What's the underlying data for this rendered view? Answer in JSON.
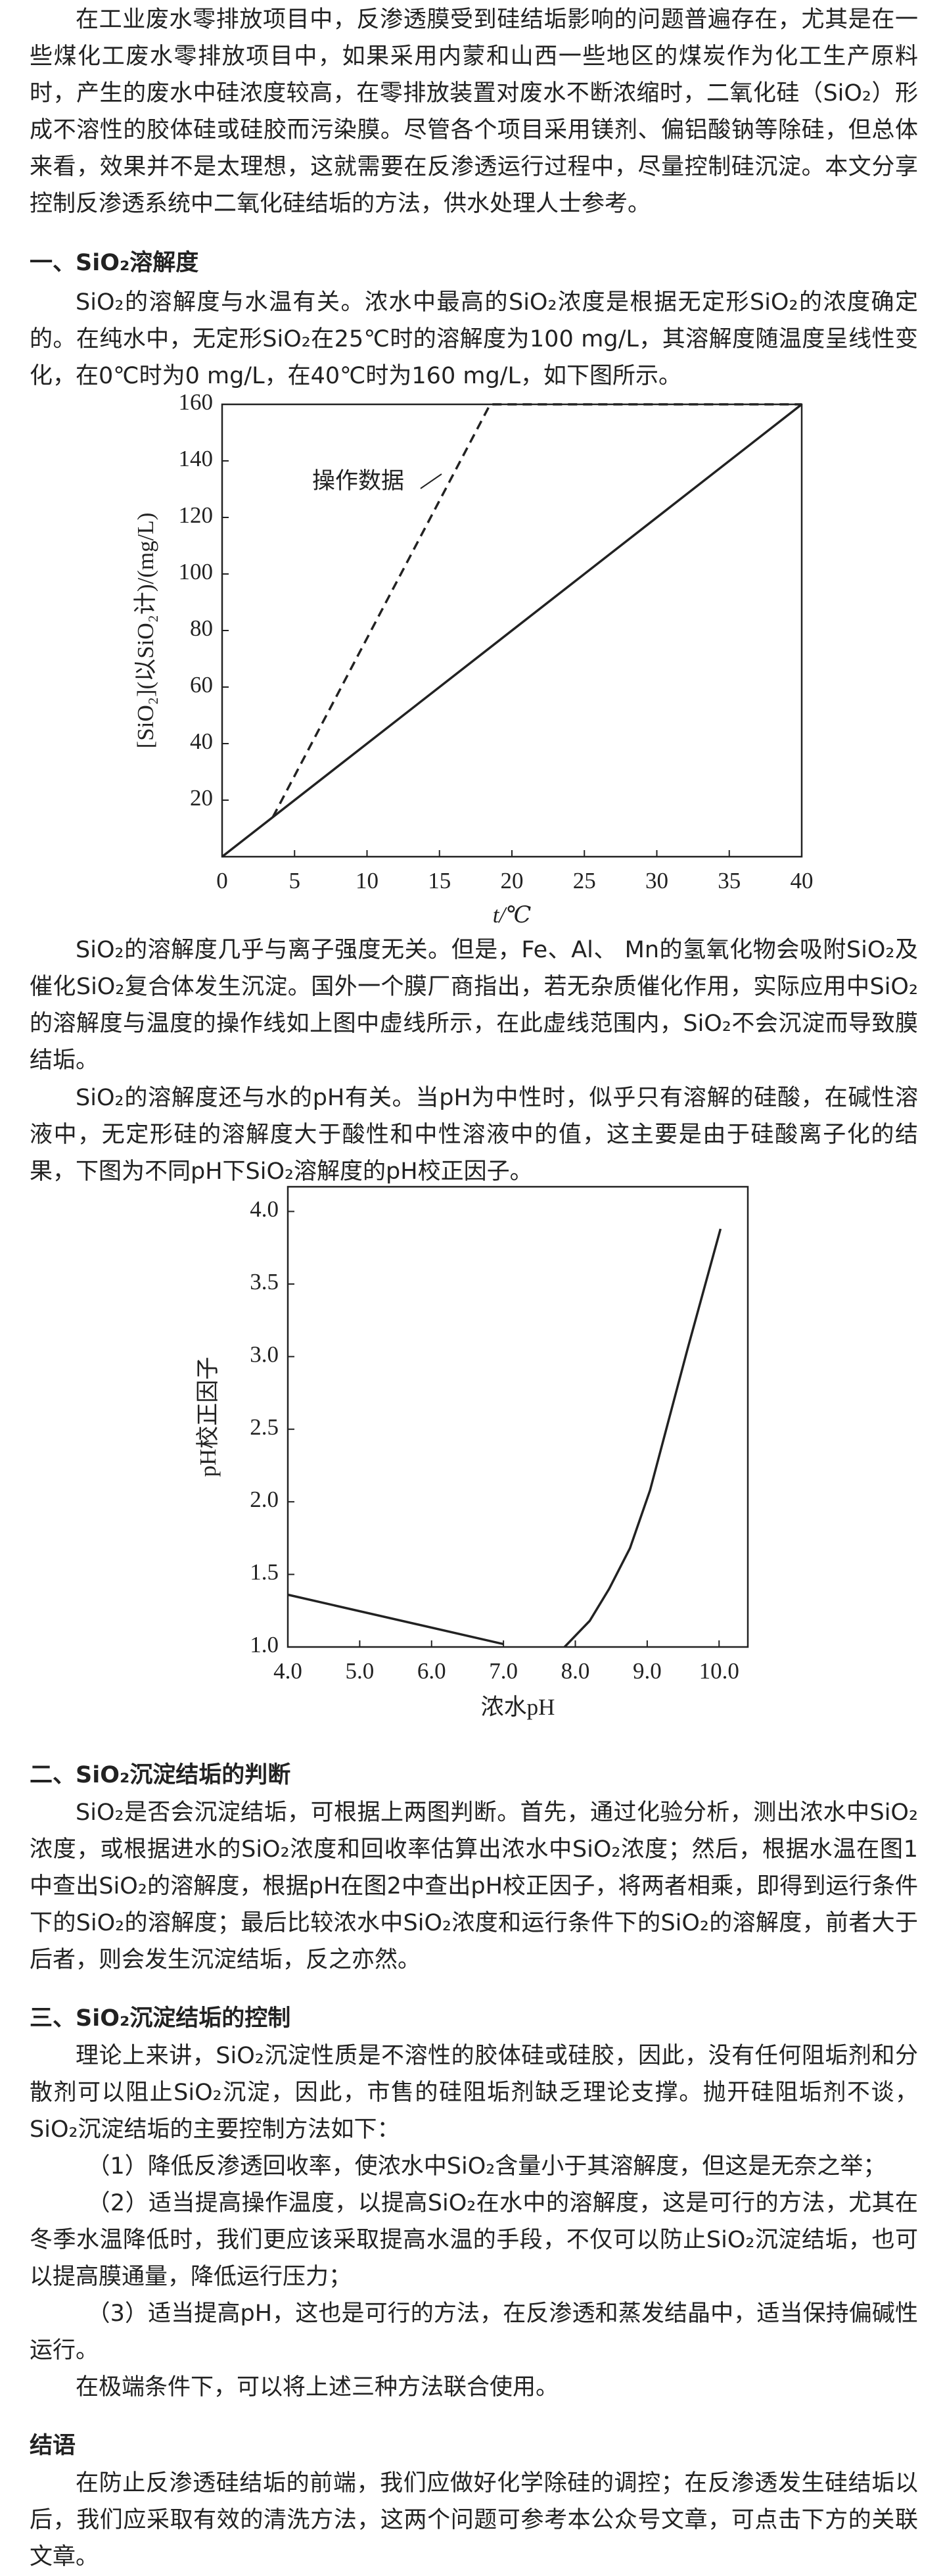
{
  "intro": "在工业废水零排放项目中，反渗透膜受到硅结垢影响的问题普遍存在，尤其是在一些煤化工废水零排放项目中，如果采用内蒙和山西一些地区的煤炭作为化工生产原料时，产生的废水中硅浓度较高，在零排放装置对废水不断浓缩时，二氧化硅（SiO₂）形成不溶性的胶体硅或硅胶而污染膜。尽管各个项目采用镁剂、偏铝酸钠等除硅，但总体来看，效果并不是太理想，这就需要在反渗透运行过程中，尽量控制硅沉淀。本文分享控制反渗透系统中二氧化硅结垢的方法，供水处理人士参考。",
  "sections": [
    {
      "heading": "一、SiO₂溶解度",
      "paragraphs": [
        "SiO₂的溶解度与水温有关。浓水中最高的SiO₂浓度是根据无定形SiO₂的浓度确定的。在纯水中，无定形SiO₂在25℃时的溶解度为100 mg/L，其溶解度随温度呈线性变化，在0℃时为0 mg/L，在40℃时为160 mg/L，如下图所示。",
        "SiO₂的溶解度几乎与离子强度无关。但是，Fe、Al、 Mn的氢氧化物会吸附SiO₂及催化SiO₂复合体发生沉淀。国外一个膜厂商指出，若无杂质催化作用，实际应用中SiO₂的溶解度与温度的操作线如上图中虚线所示，在此虚线范围内，SiO₂不会沉淀而导致膜结垢。",
        "SiO₂的溶解度还与水的pH有关。当pH为中性时，似乎只有溶解的硅酸，在碱性溶液中，无定形硅的溶解度大于酸性和中性溶液中的值，这主要是由于硅酸离子化的结果，下图为不同pH下SiO₂溶解度的pH校正因子。"
      ]
    },
    {
      "heading": "二、SiO₂沉淀结垢的判断",
      "paragraphs": [
        "SiO₂是否会沉淀结垢，可根据上两图判断。首先，通过化验分析，测出浓水中SiO₂浓度，或根据进水的SiO₂浓度和回收率估算出浓水中SiO₂浓度；然后，根据水温在图1中查出SiO₂的溶解度，根据pH在图2中查出pH校正因子，将两者相乘，即得到运行条件下的SiO₂的溶解度；最后比较浓水中SiO₂浓度和运行条件下的SiO₂的溶解度，前者大于后者，则会发生沉淀结垢，反之亦然。"
      ]
    },
    {
      "heading": "三、SiO₂沉淀结垢的控制",
      "paragraphs": [
        "理论上来讲，SiO₂沉淀性质是不溶性的胶体硅或硅胶，因此，没有任何阻垢剂和分散剂可以阻止SiO₂沉淀，因此，市售的硅阻垢剂缺乏理论支撑。抛开硅阻垢剂不谈，SiO₂沉淀结垢的主要控制方法如下：",
        "（1）降低反渗透回收率，使浓水中SiO₂含量小于其溶解度，但这是无奈之举；",
        "（2）适当提高操作温度，以提高SiO₂在水中的溶解度，这是可行的方法，尤其在冬季水温降低时，我们更应该采取提高水温的手段，不仅可以防止SiO₂沉淀结垢，也可以提高膜通量，降低运行压力；",
        "（3）适当提高pH，这也是可行的方法，在反渗透和蒸发结晶中，适当保持偏碱性运行。",
        "在极端条件下，可以将上述三种方法联合使用。"
      ]
    },
    {
      "heading": "结语",
      "paragraphs": [
        "在防止反渗透硅结垢的前端，我们应做好化学除硅的调控；在反渗透发生硅结垢以后，我们应采取有效的清洗方法，这两个问题可参考本公众号文章，可点击下方的关联文章。"
      ]
    }
  ],
  "chart_data": [
    {
      "type": "line",
      "x_label": "t/℃",
      "y_label": "[SiO₂](以SiO₂计)/(mg/L)",
      "annotation": "操作数据",
      "xlim": [
        0,
        40
      ],
      "ylim": [
        0,
        160
      ],
      "xticks": [
        0,
        5,
        10,
        15,
        20,
        25,
        30,
        35,
        40
      ],
      "yticks": [
        20,
        40,
        60,
        80,
        100,
        120,
        140,
        160
      ],
      "series": [
        {
          "color": "#222222",
          "line_style": "solid",
          "x": [
            0,
            40
          ],
          "values": [
            0,
            160
          ]
        },
        {
          "color": "#222222",
          "line_style": "dashed",
          "x": [
            3.5,
            18.5,
            40
          ],
          "values": [
            14,
            160,
            160
          ]
        }
      ]
    },
    {
      "type": "line",
      "x_label": "浓水pH",
      "y_label": "pH校正因子",
      "xlim": [
        4,
        10.4
      ],
      "ylim": [
        1,
        4.17
      ],
      "xticks": [
        {
          "value": 4,
          "label": "4.0"
        },
        {
          "value": 5,
          "label": "5.0"
        },
        {
          "value": 6,
          "label": "6.0"
        },
        {
          "value": 7,
          "label": "7.0"
        },
        {
          "value": 8,
          "label": "8.0"
        },
        {
          "value": 9,
          "label": "9.0"
        },
        {
          "value": 10,
          "label": "10.0"
        }
      ],
      "yticks": [
        {
          "value": 1,
          "label": "1.0"
        },
        {
          "value": 1.5,
          "label": "1.5"
        },
        {
          "value": 2,
          "label": "2.0"
        },
        {
          "value": 2.5,
          "label": "2.5"
        },
        {
          "value": 3,
          "label": "3.0"
        },
        {
          "value": 3.5,
          "label": "3.5"
        },
        {
          "value": 4,
          "label": "4.0"
        }
      ],
      "series": [
        {
          "color": "#222222",
          "line_style": "solid",
          "x": [
            4,
            7
          ],
          "values": [
            1.36,
            1.02
          ]
        },
        {
          "color": "#222222",
          "line_style": "solid",
          "x": [
            7.85,
            8.2,
            8.47,
            8.76,
            9.04,
            9.56,
            10.02
          ],
          "values": [
            1,
            1.18,
            1.4,
            1.68,
            2.08,
            3.05,
            3.88
          ]
        }
      ]
    }
  ]
}
